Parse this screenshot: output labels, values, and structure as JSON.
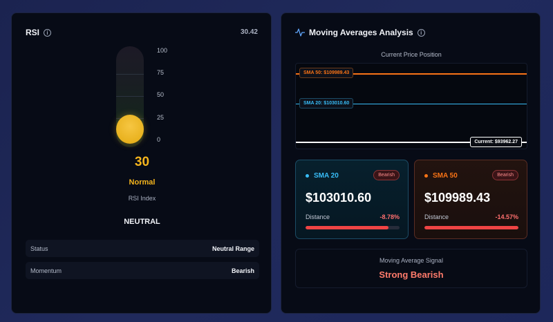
{
  "rsi_panel": {
    "title": "RSI",
    "value_top": "30.42",
    "scale": [
      "100",
      "75",
      "50",
      "25",
      "0"
    ],
    "value": "30",
    "level": 30.42,
    "state": "Normal",
    "subtitle": "RSI Index",
    "signal": "NEUTRAL",
    "rows": [
      {
        "label": "Status",
        "value": "Neutral Range"
      },
      {
        "label": "Momentum",
        "value": "Bearish"
      }
    ],
    "accent_color": "#f5b51d"
  },
  "ma_panel": {
    "title": "Moving Averages Analysis",
    "position_title": "Current Price Position",
    "tags": {
      "sma50": "SMA 50: $109989.43",
      "sma20": "SMA 20: $103010.60",
      "current": "Current: $93962.27"
    },
    "cards": {
      "sma20": {
        "name": "SMA 20",
        "badge": "Bearish",
        "price": "$103010.60",
        "distance_label": "Distance",
        "distance": "-8.78%",
        "bar_fill": 0.88,
        "color": "#38bdf8"
      },
      "sma50": {
        "name": "SMA 50",
        "badge": "Bearish",
        "price": "$109989.43",
        "distance_label": "Distance",
        "distance": "-14.57%",
        "bar_fill": 1.0,
        "color": "#f97316"
      }
    },
    "signal_label": "Moving Average Signal",
    "signal_value": "Strong Bearish",
    "colors": {
      "sma50": "#f97316",
      "sma20": "#38bdf8",
      "current": "#ffffff",
      "bearish": "#ef4444"
    }
  }
}
